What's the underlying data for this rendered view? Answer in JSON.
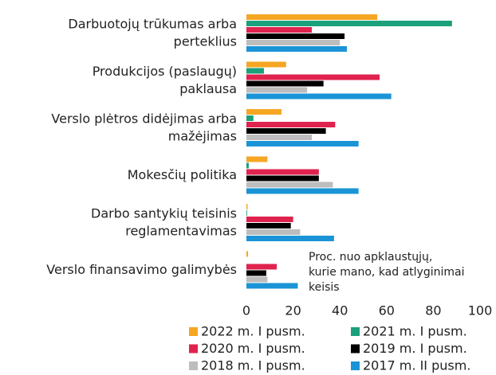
{
  "chart_data": {
    "type": "hbar",
    "categories": [
      [
        "Darbuotojų trūkumas arba",
        "perteklius"
      ],
      [
        "Produkcijos (paslaugų)",
        "paklausa"
      ],
      [
        "Verslo plėtros didėjimas arba",
        "mažėjimas"
      ],
      [
        "Mokesčių politika"
      ],
      [
        "Darbo santykių teisinis",
        "reglamentavimas"
      ],
      [
        "Verslo finansavimo galimybės"
      ]
    ],
    "series": [
      {
        "name": "2022 m. I pusm.",
        "color": "#f5a623",
        "values": [
          56,
          17,
          15,
          9,
          0.5,
          0.7
        ]
      },
      {
        "name": "2021 m. I pusm.",
        "color": "#1aa07a",
        "values": [
          88,
          7.5,
          3,
          1,
          0.3,
          0
        ]
      },
      {
        "name": "2020 m. I pusm.",
        "color": "#e0234e",
        "values": [
          28,
          57,
          38,
          31,
          20,
          13
        ]
      },
      {
        "name": "2019 m. I pusm.",
        "color": "#000000",
        "values": [
          42,
          33,
          34,
          31,
          19,
          8.5
        ]
      },
      {
        "name": "2018 m. I pusm.",
        "color": "#bdbdbd",
        "values": [
          40,
          26,
          28,
          37,
          23,
          9
        ]
      },
      {
        "name": "2017 m. II pusm.",
        "color": "#1a94d6",
        "values": [
          43,
          62,
          48,
          48,
          37.5,
          22
        ]
      }
    ],
    "xlim": [
      0,
      100
    ],
    "xticks": [
      0,
      20,
      40,
      60,
      80,
      100
    ],
    "annotation": [
      "Proc. nuo apklaustųjų,",
      "kurie mano, kad atlyginimai",
      "keisis"
    ],
    "grid": false
  }
}
